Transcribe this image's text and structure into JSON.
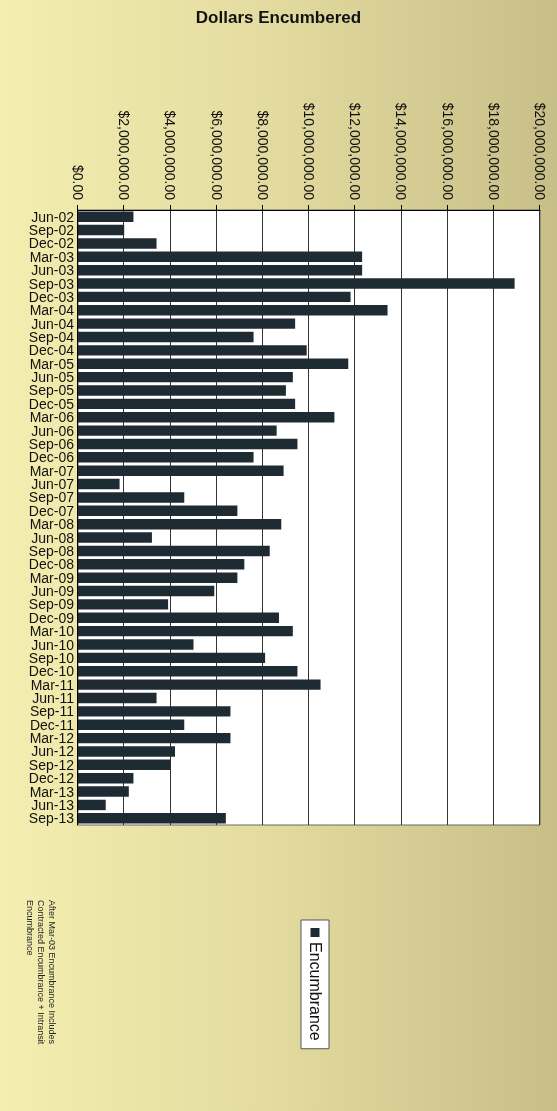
{
  "chart_data": {
    "type": "bar",
    "title": "Dollars Encumbered",
    "categories": [
      "Jun-02",
      "Sep-02",
      "Dec-02",
      "Mar-03",
      "Jun-03",
      "Sep-03",
      "Dec-03",
      "Mar-04",
      "Jun-04",
      "Sep-04",
      "Dec-04",
      "Mar-05",
      "Jun-05",
      "Sep-05",
      "Dec-05",
      "Mar-06",
      "Jun-06",
      "Sep-06",
      "Dec-06",
      "Mar-07",
      "Jun-07",
      "Sep-07",
      "Dec-07",
      "Mar-08",
      "Jun-08",
      "Sep-08",
      "Dec-08",
      "Mar-09",
      "Jun-09",
      "Sep-09",
      "Dec-09",
      "Mar-10",
      "Jun-10",
      "Sep-10",
      "Dec-10",
      "Mar-11",
      "Jun-11",
      "Sep-11",
      "Dec-11",
      "Mar-12",
      "Jun-12",
      "Sep-12",
      "Dec-12",
      "Mar-13",
      "Jun-13",
      "Sep-13"
    ],
    "series": [
      {
        "name": "Encumbrance",
        "color": "#1e2b33",
        "values": [
          2400000,
          2000000,
          3400000,
          12300000,
          12300000,
          18900000,
          11800000,
          13400000,
          9400000,
          7600000,
          9900000,
          11700000,
          9300000,
          9000000,
          9400000,
          11100000,
          8600000,
          9500000,
          7600000,
          8900000,
          1800000,
          4600000,
          6900000,
          8800000,
          3200000,
          8300000,
          7200000,
          6900000,
          5900000,
          3900000,
          8700000,
          9300000,
          5000000,
          8100000,
          9500000,
          10500000,
          3400000,
          6600000,
          4600000,
          6600000,
          4200000,
          4000000,
          2400000,
          2200000,
          1200000,
          6400000
        ]
      }
    ],
    "orientation": "horizontal",
    "xlim": [
      0,
      20000000
    ],
    "xticks": [
      {
        "value": 0,
        "label": "$0.00"
      },
      {
        "value": 2000000,
        "label": "$2,000,000.00"
      },
      {
        "value": 4000000,
        "label": "$4,000,000.00"
      },
      {
        "value": 6000000,
        "label": "$6,000,000.00"
      },
      {
        "value": 8000000,
        "label": "$8,000,000.00"
      },
      {
        "value": 10000000,
        "label": "$10,000,000.00"
      },
      {
        "value": 12000000,
        "label": "$12,000,000.00"
      },
      {
        "value": 14000000,
        "label": "$14,000,000.00"
      },
      {
        "value": 16000000,
        "label": "$16,000,000.00"
      },
      {
        "value": 18000000,
        "label": "$18,000,000.00"
      },
      {
        "value": 20000000,
        "label": "$20,000,000.00"
      }
    ],
    "grid": "x",
    "legend": "bottom",
    "annotations": [
      "After Mar-03 Encumbrance Includes Contracted Encumbrance + Intransit Encumbrance"
    ]
  }
}
